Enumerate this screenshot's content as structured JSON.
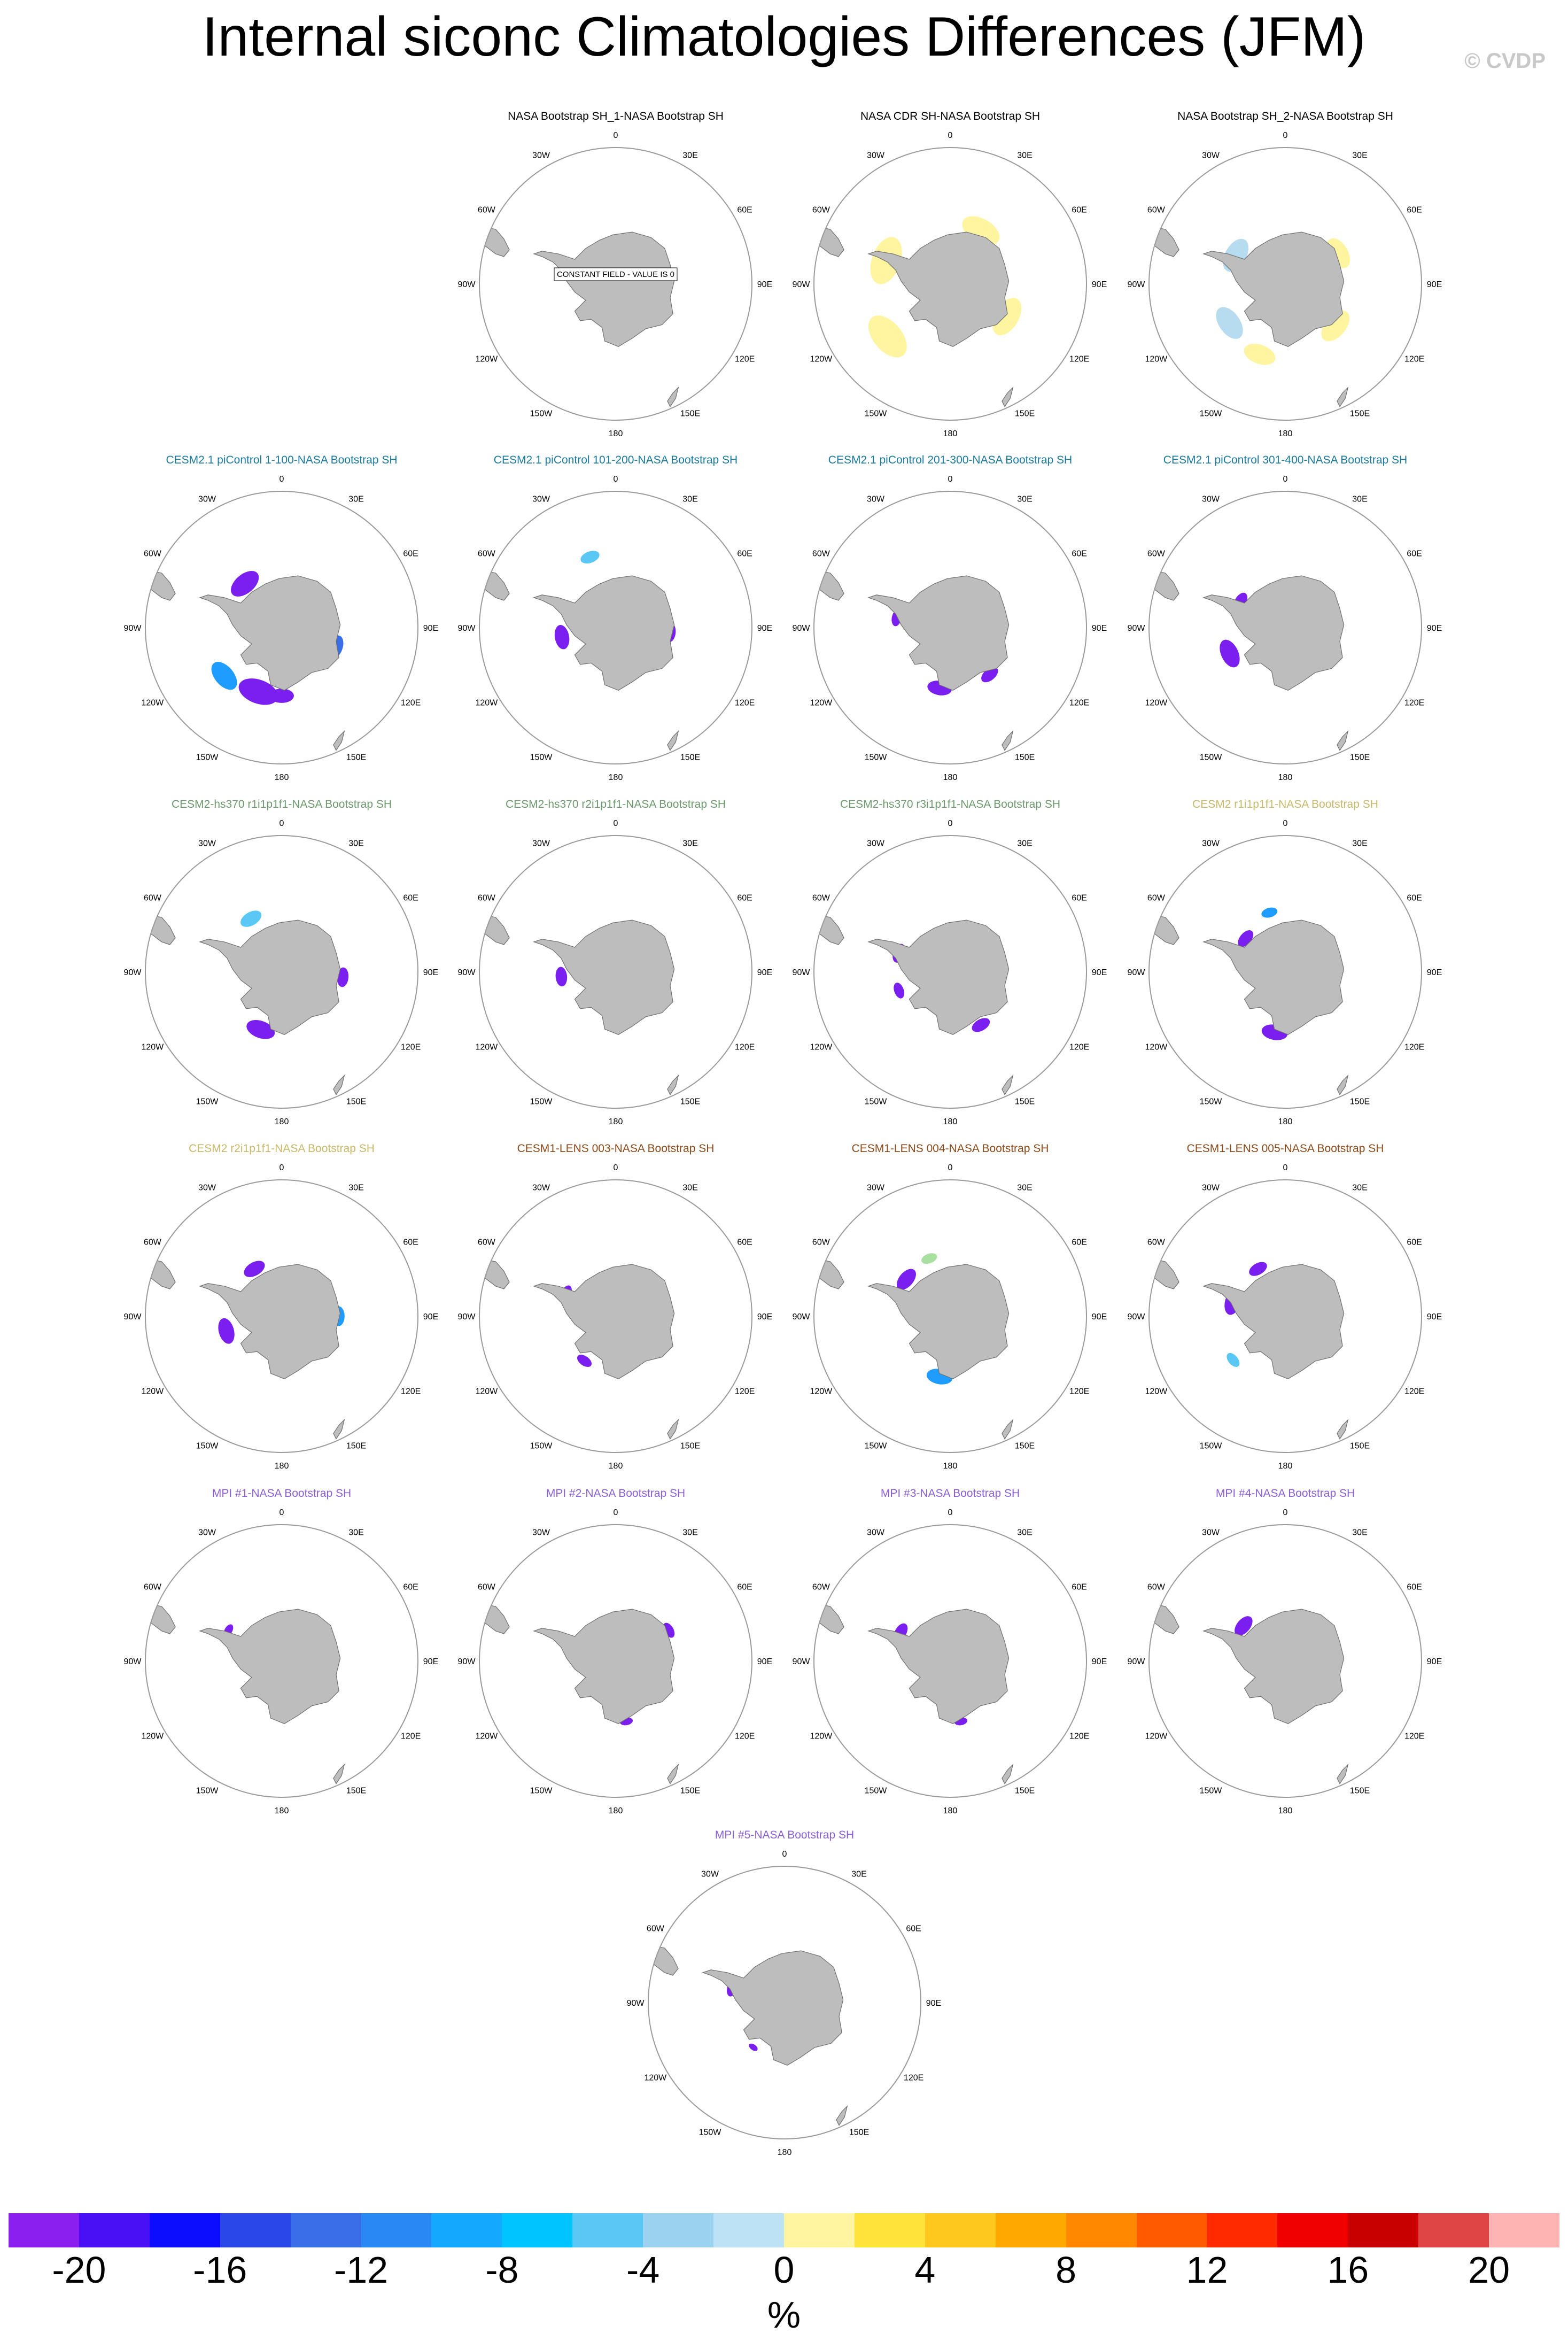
{
  "title": "Internal siconc Climatologies Differences (JFM)",
  "credit": "© CVDP",
  "panel_labels": {
    "lon_ticks": [
      "0",
      "30E",
      "60E",
      "90E",
      "120E",
      "150E",
      "180",
      "150W",
      "120W",
      "90W",
      "60W",
      "30W"
    ],
    "constant_field": "CONSTANT FIELD - VALUE IS 0"
  },
  "colors": {
    "land": "#bdbdbd",
    "title_black": "#000000",
    "title_teal": "#1a7a9e",
    "title_green": "#6d9a6d",
    "title_khaki": "#c8b86a",
    "title_brown": "#8b4a1a",
    "title_purple": "#8a5fd6"
  },
  "panels": [
    {
      "title": "NASA Bootstrap SH_1-NASA Bootstrap SH",
      "color": "#000000",
      "constant": true,
      "blobs": []
    },
    {
      "title": "NASA CDR SH-NASA Bootstrap SH",
      "color": "#000000",
      "constant": false,
      "blobs": [
        {
          "a": 230,
          "r": 0.6,
          "w": 0.3,
          "c": "#fff5a0"
        },
        {
          "a": 290,
          "r": 0.5,
          "w": 0.3,
          "c": "#fff5a0"
        },
        {
          "a": 30,
          "r": 0.45,
          "w": 0.25,
          "c": "#fff5a0"
        },
        {
          "a": 120,
          "r": 0.48,
          "w": 0.25,
          "c": "#fff5a0"
        }
      ]
    },
    {
      "title": "NASA Bootstrap SH_2-NASA Bootstrap SH",
      "color": "#000000",
      "constant": false,
      "blobs": [
        {
          "a": 300,
          "r": 0.42,
          "w": 0.22,
          "c": "#b8dcef"
        },
        {
          "a": 235,
          "r": 0.5,
          "w": 0.22,
          "c": "#b8dcef"
        },
        {
          "a": 60,
          "r": 0.45,
          "w": 0.2,
          "c": "#fff5a0"
        },
        {
          "a": 130,
          "r": 0.48,
          "w": 0.22,
          "c": "#fff5a0"
        },
        {
          "a": 200,
          "r": 0.55,
          "w": 0.2,
          "c": "#fff5a0"
        }
      ]
    },
    {
      "title": "CESM2.1 piControl 1-100-NASA Bootstrap SH",
      "color": "#1a7a9e",
      "constant": false,
      "blobs": [
        {
          "a": 200,
          "r": 0.5,
          "w": 0.25,
          "c": "#7a1ff0"
        },
        {
          "a": 230,
          "r": 0.55,
          "w": 0.2,
          "c": "#1f9cff"
        },
        {
          "a": 320,
          "r": 0.42,
          "w": 0.2,
          "c": "#7a1ff0"
        },
        {
          "a": 110,
          "r": 0.42,
          "w": 0.15,
          "c": "#3a6ee8"
        },
        {
          "a": 180,
          "r": 0.5,
          "w": 0.15,
          "c": "#7a1ff0"
        }
      ]
    },
    {
      "title": "CESM2.1 piControl 101-200-NASA Bootstrap SH",
      "color": "#1a7a9e",
      "constant": false,
      "blobs": [
        {
          "a": 260,
          "r": 0.4,
          "w": 0.15,
          "c": "#7a1ff0"
        },
        {
          "a": 95,
          "r": 0.4,
          "w": 0.12,
          "c": "#7a1ff0"
        },
        {
          "a": 340,
          "r": 0.55,
          "w": 0.12,
          "c": "#5ac8f5"
        }
      ]
    },
    {
      "title": "CESM2.1 piControl 201-300-NASA Bootstrap SH",
      "color": "#1a7a9e",
      "constant": false,
      "blobs": [
        {
          "a": 190,
          "r": 0.45,
          "w": 0.15,
          "c": "#7a1ff0"
        },
        {
          "a": 140,
          "r": 0.45,
          "w": 0.12,
          "c": "#7a1ff0"
        },
        {
          "a": 280,
          "r": 0.4,
          "w": 0.1,
          "c": "#7a1ff0"
        }
      ]
    },
    {
      "title": "CESM2.1 piControl 301-400-NASA Bootstrap SH",
      "color": "#1a7a9e",
      "constant": false,
      "blobs": [
        {
          "a": 245,
          "r": 0.45,
          "w": 0.18,
          "c": "#7a1ff0"
        },
        {
          "a": 300,
          "r": 0.38,
          "w": 0.12,
          "c": "#7a1ff0"
        }
      ]
    },
    {
      "title": "CESM2-hs370 r1i1p1f1-NASA Bootstrap SH",
      "color": "#6d9a6d",
      "constant": false,
      "blobs": [
        {
          "a": 200,
          "r": 0.45,
          "w": 0.18,
          "c": "#7a1ff0"
        },
        {
          "a": 330,
          "r": 0.45,
          "w": 0.14,
          "c": "#5ac8f5"
        },
        {
          "a": 95,
          "r": 0.45,
          "w": 0.12,
          "c": "#7a1ff0"
        }
      ]
    },
    {
      "title": "CESM2-hs370 r2i1p1f1-NASA Bootstrap SH",
      "color": "#6d9a6d",
      "constant": false,
      "blobs": [
        {
          "a": 265,
          "r": 0.4,
          "w": 0.12,
          "c": "#7a1ff0"
        }
      ]
    },
    {
      "title": "CESM2-hs370 r3i1p1f1-NASA Bootstrap SH",
      "color": "#6d9a6d",
      "constant": false,
      "blobs": [
        {
          "a": 290,
          "r": 0.4,
          "w": 0.12,
          "c": "#7a1ff0"
        },
        {
          "a": 150,
          "r": 0.45,
          "w": 0.12,
          "c": "#7a1ff0"
        },
        {
          "a": 250,
          "r": 0.4,
          "w": 0.1,
          "c": "#7a1ff0"
        }
      ]
    },
    {
      "title": "CESM2 r1i1p1f1-NASA Bootstrap SH",
      "color": "#c8b86a",
      "constant": false,
      "blobs": [
        {
          "a": 190,
          "r": 0.45,
          "w": 0.16,
          "c": "#7a1ff0"
        },
        {
          "a": 310,
          "r": 0.38,
          "w": 0.12,
          "c": "#7a1ff0"
        },
        {
          "a": 345,
          "r": 0.45,
          "w": 0.1,
          "c": "#1f9cff"
        }
      ]
    },
    {
      "title": "CESM2 r2i1p1f1-NASA Bootstrap SH",
      "color": "#c8b86a",
      "constant": false,
      "blobs": [
        {
          "a": 255,
          "r": 0.42,
          "w": 0.16,
          "c": "#7a1ff0"
        },
        {
          "a": 330,
          "r": 0.4,
          "w": 0.14,
          "c": "#7a1ff0"
        },
        {
          "a": 90,
          "r": 0.42,
          "w": 0.12,
          "c": "#1f9cff"
        }
      ]
    },
    {
      "title": "CESM1-LENS 003-NASA Bootstrap SH",
      "color": "#8b4a1a",
      "constant": false,
      "blobs": [
        {
          "a": 295,
          "r": 0.4,
          "w": 0.1,
          "c": "#7a1ff0"
        },
        {
          "a": 215,
          "r": 0.4,
          "w": 0.1,
          "c": "#7a1ff0"
        }
      ]
    },
    {
      "title": "CESM1-LENS 004-NASA Bootstrap SH",
      "color": "#8b4a1a",
      "constant": false,
      "blobs": [
        {
          "a": 190,
          "r": 0.45,
          "w": 0.16,
          "c": "#1f9cff"
        },
        {
          "a": 310,
          "r": 0.42,
          "w": 0.15,
          "c": "#7a1ff0"
        },
        {
          "a": 340,
          "r": 0.45,
          "w": 0.1,
          "c": "#a8e0a0"
        }
      ]
    },
    {
      "title": "CESM1-LENS 005-NASA Bootstrap SH",
      "color": "#8b4a1a",
      "constant": false,
      "blobs": [
        {
          "a": 285,
          "r": 0.4,
          "w": 0.16,
          "c": "#7a1ff0"
        },
        {
          "a": 330,
          "r": 0.4,
          "w": 0.12,
          "c": "#7a1ff0"
        },
        {
          "a": 230,
          "r": 0.5,
          "w": 0.1,
          "c": "#5ac8f5"
        }
      ]
    },
    {
      "title": "MPI #1-NASA Bootstrap SH",
      "color": "#8a5fd6",
      "constant": false,
      "blobs": [
        {
          "a": 300,
          "r": 0.45,
          "w": 0.08,
          "c": "#7a1ff0"
        }
      ]
    },
    {
      "title": "MPI #2-NASA Bootstrap SH",
      "color": "#8a5fd6",
      "constant": false,
      "blobs": [
        {
          "a": 60,
          "r": 0.45,
          "w": 0.1,
          "c": "#7a1ff0"
        },
        {
          "a": 170,
          "r": 0.45,
          "w": 0.08,
          "c": "#7a1ff0"
        }
      ]
    },
    {
      "title": "MPI #3-NASA Bootstrap SH",
      "color": "#8a5fd6",
      "constant": false,
      "blobs": [
        {
          "a": 300,
          "r": 0.42,
          "w": 0.12,
          "c": "#7a1ff0"
        },
        {
          "a": 170,
          "r": 0.45,
          "w": 0.08,
          "c": "#7a1ff0"
        }
      ]
    },
    {
      "title": "MPI #4-NASA Bootstrap SH",
      "color": "#8a5fd6",
      "constant": false,
      "blobs": [
        {
          "a": 310,
          "r": 0.4,
          "w": 0.14,
          "c": "#7a1ff0"
        }
      ]
    },
    {
      "title": "MPI #5-NASA Bootstrap SH",
      "color": "#8a5fd6",
      "constant": false,
      "blobs": [
        {
          "a": 285,
          "r": 0.4,
          "w": 0.1,
          "c": "#7a1ff0"
        },
        {
          "a": 215,
          "r": 0.4,
          "w": 0.06,
          "c": "#7a1ff0"
        }
      ]
    }
  ],
  "colorbar": {
    "units": "%",
    "labels": [
      "-20",
      "-16",
      "-12",
      "-8",
      "-4",
      "0",
      "4",
      "8",
      "12",
      "16",
      "20"
    ],
    "colors": [
      "#8a1ff0",
      "#4a10f5",
      "#0c0cff",
      "#2a48e8",
      "#3a6ee8",
      "#2a88f5",
      "#14a8ff",
      "#00c4ff",
      "#5ac8f5",
      "#9bd2f0",
      "#bee2f5",
      "#fff5a0",
      "#ffe23a",
      "#ffc81e",
      "#ffa800",
      "#ff8800",
      "#ff5a00",
      "#ff2a00",
      "#f00000",
      "#c80000",
      "#e04545",
      "#ffb4b4"
    ]
  }
}
